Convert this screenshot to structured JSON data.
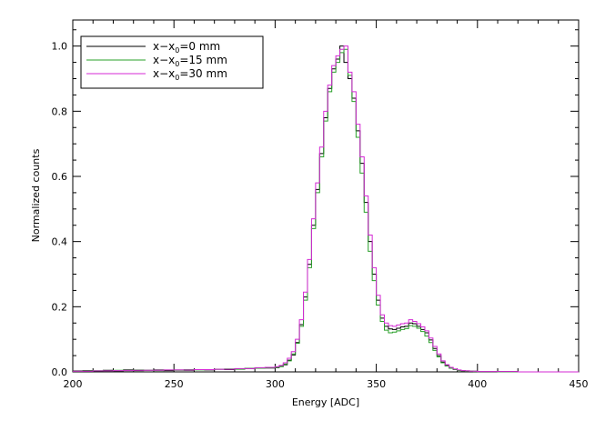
{
  "chart_data": {
    "type": "line",
    "style": "step",
    "xlabel": "Energy [ADC]",
    "ylabel": "Normalized counts",
    "xlim": [
      200,
      450
    ],
    "ylim": [
      0,
      1.08
    ],
    "grid": false,
    "legend_position": "top-left",
    "x_ticks": [
      200,
      250,
      300,
      350,
      400,
      450
    ],
    "x_tick_labels": [
      "200",
      "250",
      "300",
      "350",
      "400",
      "450"
    ],
    "y_ticks": [
      0,
      0.2,
      0.4,
      0.6,
      0.8,
      1.0
    ],
    "y_tick_labels": [
      "0.0",
      "0.2",
      "0.4",
      "0.6",
      "0.8",
      "1.0"
    ],
    "x": [
      200,
      205,
      210,
      215,
      220,
      225,
      230,
      235,
      240,
      245,
      250,
      255,
      260,
      265,
      270,
      275,
      280,
      285,
      290,
      295,
      300,
      302,
      304,
      306,
      308,
      310,
      312,
      314,
      316,
      318,
      320,
      322,
      324,
      326,
      328,
      330,
      332,
      334,
      336,
      338,
      340,
      342,
      344,
      346,
      348,
      350,
      352,
      354,
      356,
      358,
      360,
      362,
      364,
      366,
      368,
      370,
      372,
      374,
      376,
      378,
      380,
      382,
      384,
      386,
      388,
      390,
      392,
      394,
      396,
      398,
      400,
      410,
      420,
      430,
      440,
      450
    ],
    "series": [
      {
        "name": "x-x0=0 mm",
        "color": "#000000",
        "values": [
          0.003,
          0.004,
          0.002,
          0.005,
          0.003,
          0.006,
          0.004,
          0.005,
          0.006,
          0.004,
          0.006,
          0.005,
          0.007,
          0.006,
          0.008,
          0.007,
          0.009,
          0.01,
          0.012,
          0.012,
          0.013,
          0.017,
          0.022,
          0.036,
          0.052,
          0.09,
          0.145,
          0.23,
          0.33,
          0.45,
          0.56,
          0.67,
          0.78,
          0.87,
          0.93,
          0.96,
          1.0,
          0.95,
          0.9,
          0.84,
          0.74,
          0.64,
          0.52,
          0.4,
          0.3,
          0.22,
          0.165,
          0.14,
          0.132,
          0.13,
          0.134,
          0.138,
          0.14,
          0.15,
          0.148,
          0.14,
          0.13,
          0.12,
          0.098,
          0.072,
          0.05,
          0.03,
          0.02,
          0.013,
          0.008,
          0.005,
          0.004,
          0.003,
          0.002,
          0.002,
          0.001,
          0.001,
          0.0,
          0.0,
          0.0,
          0.0
        ]
      },
      {
        "name": "x-x0=15 mm",
        "color": "#2aa02a",
        "values": [
          0.002,
          0.003,
          0.004,
          0.003,
          0.005,
          0.004,
          0.006,
          0.005,
          0.004,
          0.006,
          0.005,
          0.007,
          0.006,
          0.007,
          0.008,
          0.009,
          0.008,
          0.011,
          0.011,
          0.013,
          0.014,
          0.016,
          0.024,
          0.034,
          0.055,
          0.088,
          0.14,
          0.22,
          0.32,
          0.44,
          0.55,
          0.66,
          0.77,
          0.86,
          0.92,
          0.95,
          0.98,
          0.99,
          0.91,
          0.83,
          0.72,
          0.61,
          0.49,
          0.37,
          0.28,
          0.205,
          0.155,
          0.128,
          0.12,
          0.122,
          0.126,
          0.13,
          0.133,
          0.142,
          0.14,
          0.134,
          0.124,
          0.11,
          0.09,
          0.066,
          0.046,
          0.028,
          0.018,
          0.011,
          0.007,
          0.004,
          0.003,
          0.002,
          0.002,
          0.001,
          0.001,
          0.0,
          0.0,
          0.0,
          0.0,
          0.0
        ]
      },
      {
        "name": "x-x0=30 mm",
        "color": "#d42ad4",
        "values": [
          0.002,
          0.002,
          0.003,
          0.003,
          0.004,
          0.004,
          0.005,
          0.005,
          0.005,
          0.006,
          0.006,
          0.006,
          0.007,
          0.007,
          0.008,
          0.008,
          0.01,
          0.01,
          0.013,
          0.014,
          0.016,
          0.02,
          0.028,
          0.042,
          0.062,
          0.1,
          0.16,
          0.245,
          0.345,
          0.47,
          0.58,
          0.69,
          0.8,
          0.88,
          0.94,
          0.97,
          0.99,
          1.0,
          0.92,
          0.86,
          0.76,
          0.66,
          0.54,
          0.42,
          0.32,
          0.235,
          0.175,
          0.15,
          0.142,
          0.14,
          0.144,
          0.148,
          0.15,
          0.16,
          0.155,
          0.148,
          0.138,
          0.126,
          0.104,
          0.078,
          0.055,
          0.034,
          0.022,
          0.014,
          0.009,
          0.006,
          0.004,
          0.003,
          0.002,
          0.002,
          0.001,
          0.001,
          0.0,
          0.0,
          0.0,
          0.0
        ]
      }
    ]
  },
  "legend": [
    {
      "base": "x−x",
      "sub": "0",
      "tail": "=0  mm",
      "color": "#000000"
    },
    {
      "base": "x−x",
      "sub": "0",
      "tail": "=15  mm",
      "color": "#2aa02a"
    },
    {
      "base": "x−x",
      "sub": "0",
      "tail": "=30  mm",
      "color": "#d42ad4"
    }
  ]
}
